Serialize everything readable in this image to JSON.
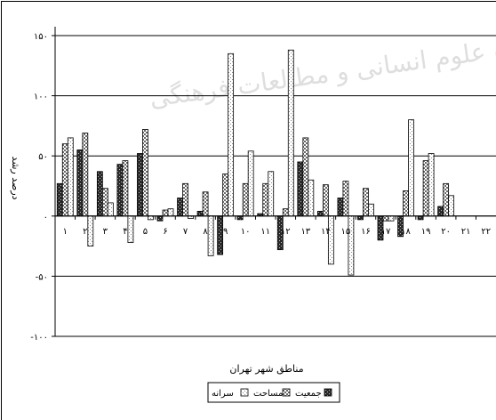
{
  "chart_data": {
    "type": "bar",
    "title": "",
    "watermark_text": "پژوهشگاه علوم انسانی و مطالعات فرهنگی",
    "xlabel": "مناطق شهر تهران",
    "ylabel": "درصد رشد",
    "ylim": [
      -100,
      150
    ],
    "yticks": [
      -100,
      -50,
      0,
      50,
      100,
      150
    ],
    "ytick_labels": [
      "-۱۰۰",
      "-۵۰",
      "۰",
      "۵۰",
      "۱۰۰",
      "۱۵۰"
    ],
    "grid": true,
    "legend_position": "bottom-center",
    "categories": [
      "1",
      "2",
      "3",
      "4",
      "5",
      "6",
      "7",
      "8",
      "9",
      "10",
      "11",
      "12",
      "13",
      "14",
      "15",
      "16",
      "17",
      "18",
      "19",
      "20",
      "21",
      "22"
    ],
    "category_labels": [
      "۱",
      "۲",
      "۳",
      "۴",
      "۵",
      "۶",
      "۷",
      "۸",
      "۹",
      "۱۰",
      "۱۱",
      "۱۲",
      "۱۳",
      "۱۴",
      "۱۵",
      "۱۶",
      "۱۷",
      "۱۸",
      "۱۹",
      "۲۰",
      "۲۱",
      "۲۲"
    ],
    "series": [
      {
        "name": "جمعیت",
        "pattern": "dense",
        "values": [
          27,
          55,
          37,
          43,
          52,
          -4,
          15,
          4,
          -32,
          -3,
          2,
          -28,
          45,
          4,
          15,
          -3,
          -20,
          -17,
          -3,
          8,
          0,
          0
        ]
      },
      {
        "name": "مساحت",
        "pattern": "checker",
        "values": [
          60,
          69,
          23,
          46,
          72,
          5,
          27,
          20,
          35,
          27,
          27,
          6,
          65,
          26,
          29,
          23,
          -4,
          21,
          46,
          27,
          0,
          0
        ]
      },
      {
        "name": "سرانه",
        "pattern": "light",
        "values": [
          65,
          -25,
          11,
          -22,
          -3,
          6,
          -2,
          -33,
          135,
          54,
          37,
          138,
          30,
          -40,
          -49,
          10,
          -4,
          80,
          52,
          17,
          0,
          0
        ]
      }
    ],
    "legend_order": [
      "سرانه",
      "مساحت",
      "جمعیت"
    ]
  }
}
